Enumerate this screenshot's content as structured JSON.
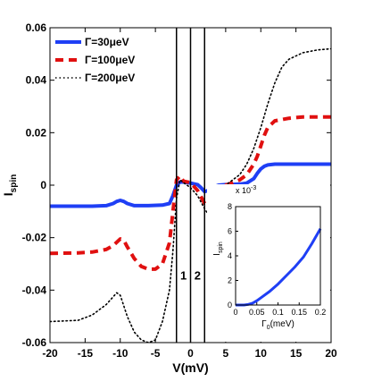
{
  "chart_data": [
    {
      "type": "line",
      "xlabel": "V(mV)",
      "ylabel_main": "I",
      "ylabel_sub": "spin",
      "xlim": [
        -20,
        20
      ],
      "ylim": [
        -0.06,
        0.06
      ],
      "xticks": [
        -20,
        -15,
        -10,
        -5,
        0,
        5,
        10,
        15,
        20
      ],
      "yticks": [
        -0.06,
        -0.04,
        -0.02,
        0,
        0.02,
        0.04,
        0.06
      ],
      "xtick_labels": [
        "-20",
        "-15",
        "-10",
        "-5",
        "0",
        "5",
        "10",
        "15",
        "20"
      ],
      "ytick_labels": [
        "-0.06",
        "-0.04",
        "-0.02",
        "0",
        "0.02",
        "0.04",
        "0.06"
      ],
      "grid": false,
      "legend_position": "top-left",
      "vertical_lines": [
        -2.0,
        0.0,
        2.0
      ],
      "region_labels": [
        "1",
        "2"
      ],
      "series": [
        {
          "name": "Γ=30μeV",
          "color": "#1f3ff5",
          "style": "solid",
          "x": [
            -20,
            -14,
            -12,
            -11,
            -10.5,
            -10,
            -9.5,
            -9,
            -8,
            -6,
            -4,
            -3,
            -2.5,
            -2,
            -1.5,
            -1,
            0,
            1,
            1.5,
            2,
            2.5,
            3,
            4,
            5,
            6,
            7,
            8,
            9,
            9.5,
            10,
            10.5,
            11,
            12,
            14,
            17,
            20
          ],
          "y": [
            -0.008,
            -0.008,
            -0.0078,
            -0.007,
            -0.0062,
            -0.0058,
            -0.0062,
            -0.007,
            -0.0078,
            -0.0078,
            -0.0076,
            -0.007,
            -0.004,
            0.0,
            0.0012,
            0.0012,
            0.0008,
            0.0002,
            -0.001,
            -0.0025,
            -0.002,
            -0.001,
            0.0,
            0.0002,
            0.0003,
            0.0004,
            0.0008,
            0.0025,
            0.0045,
            0.0062,
            0.0072,
            0.0077,
            0.008,
            0.008,
            0.008,
            0.008
          ]
        },
        {
          "name": "Γ=100μeV",
          "color": "#e01010",
          "style": "dashed",
          "x": [
            -20,
            -16,
            -14,
            -12,
            -11,
            -10,
            -9.5,
            -9,
            -8,
            -7,
            -6,
            -5,
            -4,
            -3,
            -2.5,
            -2,
            -1.5,
            -1,
            0,
            1,
            2,
            2.5,
            3,
            4,
            5,
            6,
            7,
            8,
            9,
            9.5,
            10,
            10.5,
            11,
            12,
            14,
            16,
            20
          ],
          "y": [
            -0.026,
            -0.0258,
            -0.0255,
            -0.0245,
            -0.023,
            -0.0205,
            -0.021,
            -0.0235,
            -0.028,
            -0.031,
            -0.032,
            -0.032,
            -0.03,
            -0.022,
            -0.01,
            0.002,
            0.0035,
            0.0015,
            0.001,
            -0.002,
            -0.007,
            -0.008,
            -0.005,
            -0.002,
            0.0,
            0.001,
            0.002,
            0.004,
            0.008,
            0.011,
            0.015,
            0.019,
            0.022,
            0.0245,
            0.0255,
            0.026,
            0.026
          ]
        },
        {
          "name": "Γ=200μeV",
          "color": "#000000",
          "style": "dotted",
          "x": [
            -20,
            -16,
            -14,
            -12,
            -11,
            -10.5,
            -10,
            -9.5,
            -9,
            -8,
            -7,
            -6,
            -5,
            -4,
            -3,
            -2.5,
            -2,
            -1.5,
            -1,
            0,
            1,
            2,
            2.5,
            3,
            4,
            5,
            6,
            7,
            8,
            9,
            10,
            11,
            12,
            13,
            14,
            16,
            18,
            20
          ],
          "y": [
            -0.052,
            -0.0515,
            -0.0495,
            -0.0455,
            -0.0425,
            -0.041,
            -0.042,
            -0.046,
            -0.05,
            -0.056,
            -0.059,
            -0.06,
            -0.059,
            -0.052,
            -0.04,
            -0.025,
            -0.005,
            0.002,
            0.001,
            -0.001,
            -0.004,
            -0.009,
            -0.011,
            -0.008,
            -0.004,
            0.0,
            0.002,
            0.004,
            0.008,
            0.014,
            0.022,
            0.031,
            0.039,
            0.045,
            0.048,
            0.0505,
            0.0515,
            0.052
          ]
        }
      ]
    },
    {
      "type": "line",
      "xlabel_main": "Γ",
      "xlabel_sub": "0",
      "xlabel_unit": "(meV)",
      "ylabel_main": "I",
      "ylabel_sub": "spin",
      "y_multiplier_base": "x 10",
      "y_multiplier_exp": "-3",
      "xlim": [
        0,
        0.2
      ],
      "ylim": [
        0,
        8
      ],
      "xticks": [
        0,
        0.05,
        0.1,
        0.15,
        0.2
      ],
      "yticks": [
        0,
        2,
        4,
        6,
        8
      ],
      "xtick_labels": [
        "0",
        "0.05",
        "0.1",
        "0.15",
        "0.2"
      ],
      "ytick_labels": [
        "0",
        "2",
        "4",
        "6",
        "8"
      ],
      "grid": false,
      "series": [
        {
          "color": "#1f3ff5",
          "style": "solid",
          "x": [
            0.0,
            0.02,
            0.03,
            0.04,
            0.05,
            0.06,
            0.08,
            0.1,
            0.12,
            0.14,
            0.16,
            0.18,
            0.2
          ],
          "y": [
            0.0,
            0.0,
            0.05,
            0.15,
            0.35,
            0.6,
            1.1,
            1.7,
            2.4,
            3.1,
            3.9,
            5.0,
            6.2
          ]
        }
      ]
    }
  ]
}
